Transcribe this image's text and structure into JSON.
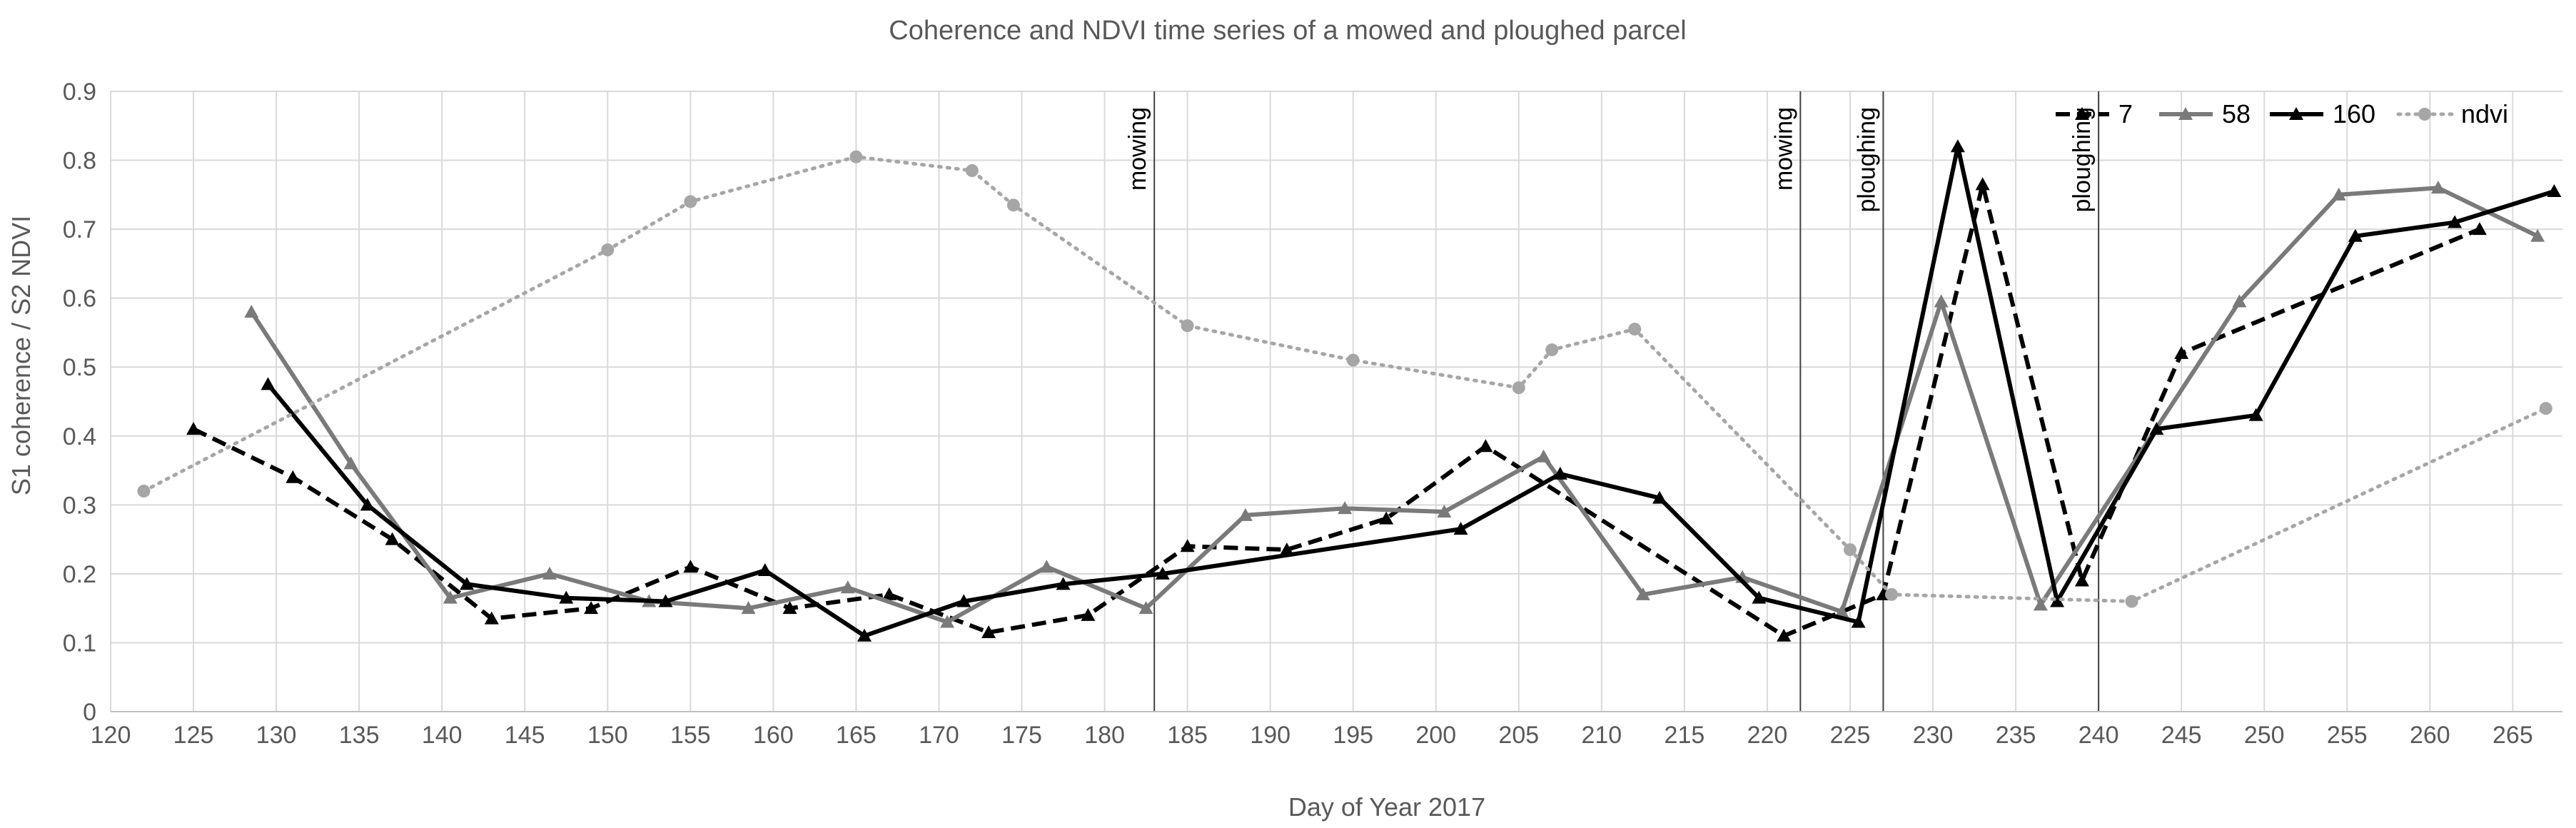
{
  "chart_data": {
    "type": "line",
    "title": "Coherence and NDVI time series of a mowed and ploughed parcel",
    "xlabel": "Day of Year 2017",
    "ylabel": "S1 coherence / S2 NDVI",
    "xlim": [
      120,
      268
    ],
    "ylim": [
      0,
      0.9
    ],
    "xticks": [
      120,
      125,
      130,
      135,
      140,
      145,
      150,
      155,
      160,
      165,
      170,
      175,
      180,
      185,
      190,
      195,
      200,
      205,
      210,
      215,
      220,
      225,
      230,
      235,
      240,
      245,
      250,
      255,
      260,
      265
    ],
    "yticks": [
      0,
      0.1,
      0.2,
      0.3,
      0.4,
      0.5,
      0.6,
      0.7,
      0.8,
      0.9
    ],
    "grid": true,
    "legend_position": "top-right",
    "events": [
      {
        "day": 183,
        "label": "mowing"
      },
      {
        "day": 222,
        "label": "mowing"
      },
      {
        "day": 227,
        "label": "ploughing"
      },
      {
        "day": 240,
        "label": "ploughing"
      }
    ],
    "series": [
      {
        "name": "7",
        "color": "#000000",
        "style": "dashed",
        "marker": "triangle",
        "points": [
          [
            125,
            0.41
          ],
          [
            131,
            0.34
          ],
          [
            137,
            0.25
          ],
          [
            143,
            0.135
          ],
          [
            149,
            0.15
          ],
          [
            155,
            0.21
          ],
          [
            161,
            0.15
          ],
          [
            167,
            0.17
          ],
          [
            173,
            0.115
          ],
          [
            179,
            0.14
          ],
          [
            185,
            0.24
          ],
          [
            191,
            0.235
          ],
          [
            197,
            0.28
          ],
          [
            203,
            0.385
          ],
          [
            221,
            0.11
          ],
          [
            227,
            0.17
          ],
          [
            233,
            0.765
          ],
          [
            239,
            0.19
          ],
          [
            245,
            0.52
          ],
          [
            263,
            0.7
          ]
        ]
      },
      {
        "name": "58",
        "color": "#7a7a7a",
        "style": "solid",
        "marker": "triangle",
        "points": [
          [
            128.5,
            0.58
          ],
          [
            134.5,
            0.36
          ],
          [
            140.5,
            0.165
          ],
          [
            146.5,
            0.2
          ],
          [
            152.5,
            0.16
          ],
          [
            158.5,
            0.15
          ],
          [
            164.5,
            0.18
          ],
          [
            170.5,
            0.13
          ],
          [
            176.5,
            0.21
          ],
          [
            182.5,
            0.15
          ],
          [
            188.5,
            0.285
          ],
          [
            194.5,
            0.295
          ],
          [
            200.5,
            0.29
          ],
          [
            206.5,
            0.37
          ],
          [
            212.5,
            0.17
          ],
          [
            218.5,
            0.195
          ],
          [
            224.5,
            0.145
          ],
          [
            230.5,
            0.595
          ],
          [
            236.5,
            0.155
          ],
          [
            248.5,
            0.595
          ],
          [
            254.5,
            0.75
          ],
          [
            260.5,
            0.76
          ],
          [
            266.5,
            0.69
          ]
        ]
      },
      {
        "name": "160",
        "color": "#000000",
        "style": "solid",
        "marker": "triangle",
        "points": [
          [
            129.5,
            0.475
          ],
          [
            135.5,
            0.3
          ],
          [
            141.5,
            0.185
          ],
          [
            147.5,
            0.165
          ],
          [
            153.5,
            0.16
          ],
          [
            159.5,
            0.205
          ],
          [
            165.5,
            0.11
          ],
          [
            171.5,
            0.16
          ],
          [
            177.5,
            0.185
          ],
          [
            183.5,
            0.2
          ],
          [
            201.5,
            0.265
          ],
          [
            207.5,
            0.345
          ],
          [
            213.5,
            0.31
          ],
          [
            219.5,
            0.165
          ],
          [
            225.5,
            0.13
          ],
          [
            231.5,
            0.82
          ],
          [
            237.5,
            0.16
          ],
          [
            243.5,
            0.41
          ],
          [
            249.5,
            0.43
          ],
          [
            255.5,
            0.69
          ],
          [
            261.5,
            0.71
          ],
          [
            267.5,
            0.755
          ]
        ]
      },
      {
        "name": "ndvi",
        "color": "#a6a6a6",
        "style": "dotted",
        "marker": "circle",
        "points": [
          [
            122,
            0.32
          ],
          [
            150,
            0.67
          ],
          [
            155,
            0.74
          ],
          [
            165,
            0.805
          ],
          [
            172,
            0.785
          ],
          [
            174.5,
            0.735
          ],
          [
            185,
            0.56
          ],
          [
            195,
            0.51
          ],
          [
            205,
            0.47
          ],
          [
            207,
            0.525
          ],
          [
            212,
            0.555
          ],
          [
            225,
            0.235
          ],
          [
            227.5,
            0.17
          ],
          [
            242,
            0.16
          ],
          [
            267,
            0.44
          ]
        ]
      }
    ]
  }
}
